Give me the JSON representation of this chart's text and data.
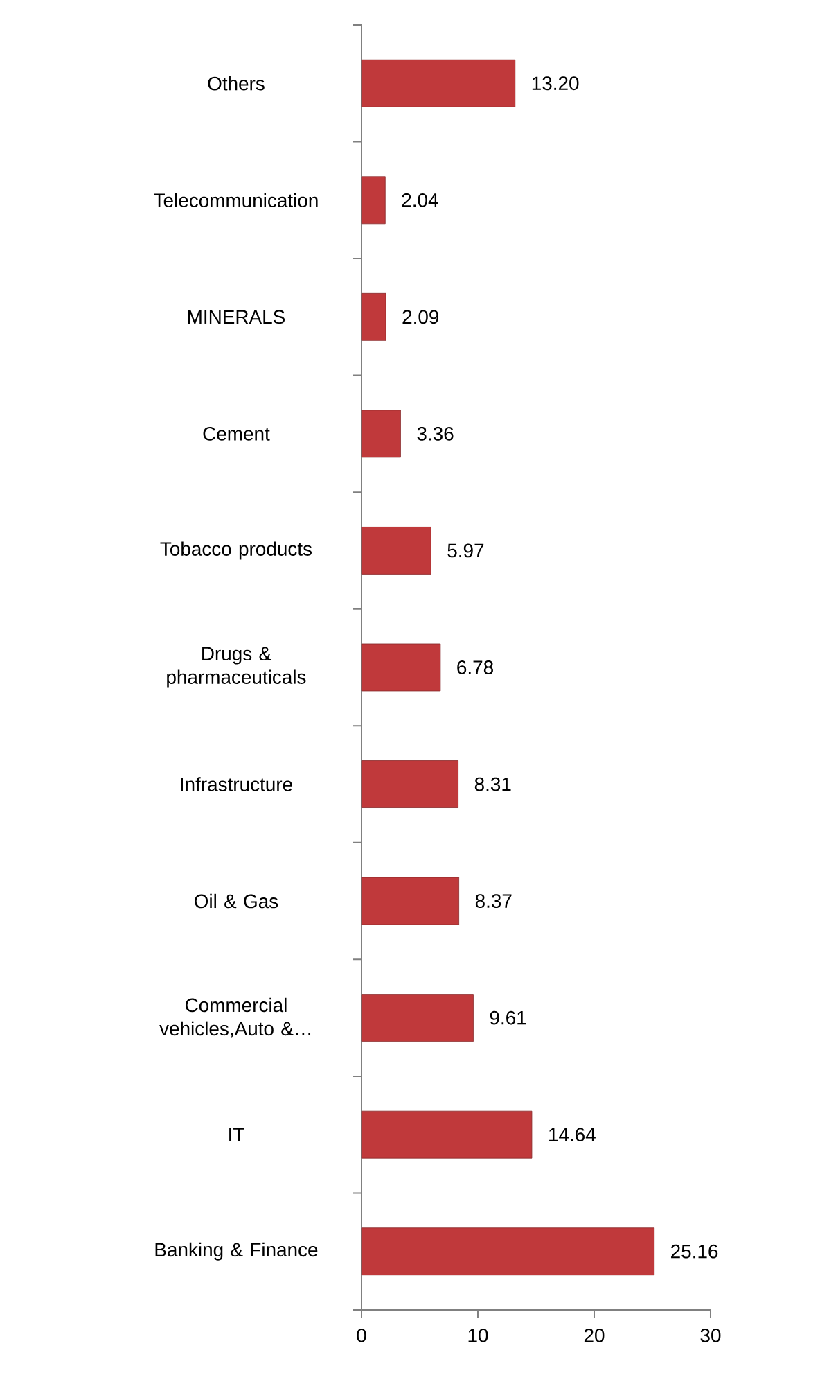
{
  "chart_data": {
    "type": "bar",
    "orientation": "horizontal",
    "categories": [
      "Others",
      "Telecommunication",
      "MINERALS",
      "Cement",
      "Tobacco products",
      "Drugs & pharmaceuticals",
      "Infrastructure",
      "Oil & Gas",
      "Commercial vehicles,Auto &…",
      "IT",
      "Banking & Finance"
    ],
    "values": [
      13.2,
      2.04,
      2.09,
      3.36,
      5.97,
      6.78,
      8.31,
      8.37,
      9.61,
      14.64,
      25.16
    ],
    "value_labels": [
      "13.20",
      "2.04",
      "2.09",
      "3.36",
      "5.97",
      "6.78",
      "8.31",
      "8.37",
      "9.61",
      "14.64",
      "25.16"
    ],
    "color": "#c0393b",
    "xlim": [
      0,
      30
    ],
    "xticks": [
      0,
      10,
      20,
      30
    ],
    "grid": false
  }
}
